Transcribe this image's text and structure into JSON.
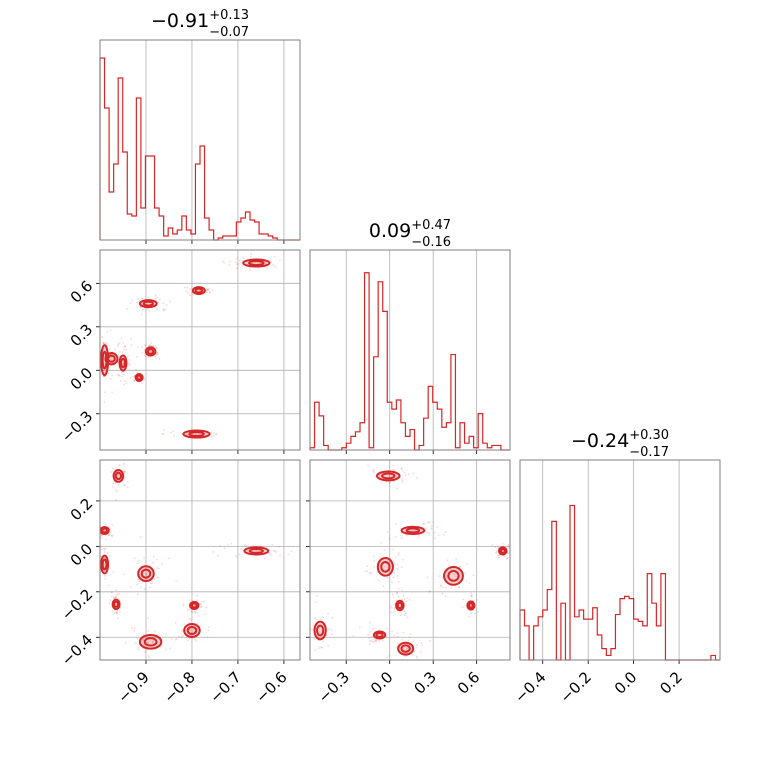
{
  "chart_data": {
    "type": "corner",
    "color": "#d62728",
    "grid": true,
    "titles": [
      {
        "value": "−0.91",
        "plus": "+0.13",
        "minus": "−0.07"
      },
      {
        "value": "0.09",
        "plus": "+0.47",
        "minus": "−0.16"
      },
      {
        "value": "−0.24",
        "plus": "+0.30",
        "minus": "−0.17"
      }
    ],
    "params": [
      {
        "range": [
          -1.0,
          -0.565
        ],
        "ticks": [
          -0.9,
          -0.8,
          -0.7,
          -0.6
        ],
        "tick_labels": [
          "−0.9",
          "−0.8",
          "−0.7",
          "−0.6"
        ]
      },
      {
        "range": [
          -0.55,
          0.83
        ],
        "ticks": [
          -0.3,
          0.0,
          0.3,
          0.6
        ],
        "tick_labels": [
          "−0.3",
          "0.0",
          "0.3",
          "0.6"
        ]
      },
      {
        "range": [
          -0.5,
          0.38
        ],
        "ticks": [
          -0.4,
          -0.2,
          0.0,
          0.2
        ],
        "tick_labels": [
          "−0.4",
          "−0.2",
          "0.0",
          "0.2"
        ]
      }
    ],
    "histograms": [
      {
        "param": 0,
        "bins": 44,
        "max": 1.0,
        "counts": [
          0.91,
          0.66,
          0.24,
          0.38,
          0.81,
          0.44,
          0.13,
          0.12,
          0.71,
          0.16,
          0.42,
          0.42,
          0.16,
          0.12,
          0.02,
          0.06,
          0.03,
          0.05,
          0.12,
          0.05,
          0.03,
          0.38,
          0.47,
          0.11,
          0.05,
          0.0,
          0.01,
          0.02,
          0.02,
          0.02,
          0.09,
          0.11,
          0.14,
          0.1,
          0.09,
          0.03,
          0.03,
          0.02,
          0.01,
          0.0,
          0.0,
          0.0,
          0.0,
          0.0
        ]
      },
      {
        "param": 1,
        "bins": 44,
        "max": 0.88,
        "counts": [
          0.01,
          0.21,
          0.15,
          0.02,
          0.0,
          0.0,
          0.0,
          0.01,
          0.03,
          0.06,
          0.08,
          0.12,
          0.78,
          0.01,
          0.41,
          0.74,
          0.61,
          0.21,
          0.18,
          0.22,
          0.12,
          0.06,
          0.09,
          0.0,
          0.02,
          0.14,
          0.28,
          0.21,
          0.18,
          0.1,
          0.12,
          0.42,
          0.01,
          0.12,
          0.03,
          0.06,
          0.01,
          0.16,
          0.03,
          0.01,
          0.02,
          0.02,
          0.0,
          0.0
        ]
      },
      {
        "param": 2,
        "bins": 44,
        "max": 0.88,
        "counts": [
          0.22,
          0.15,
          0.0,
          0.15,
          0.19,
          0.22,
          0.31,
          0.61,
          0.0,
          0.25,
          0.0,
          0.68,
          0.19,
          0.22,
          0.18,
          0.18,
          0.23,
          0.11,
          0.05,
          0.02,
          0.05,
          0.2,
          0.27,
          0.28,
          0.27,
          0.18,
          0.17,
          0.15,
          0.38,
          0.25,
          0.15,
          0.38,
          0.0,
          0.0,
          0.0,
          0.0,
          0.0,
          0.0,
          0.0,
          0.0,
          0.0,
          0.0,
          0.02,
          0.0
        ]
      }
    ],
    "scatter_panels": [
      {
        "x_param": 0,
        "y_param": 1,
        "clusters": [
          {
            "x": -0.66,
            "y": 0.74,
            "sx": 0.022,
            "sy": 0.015
          },
          {
            "x": -0.895,
            "y": 0.46,
            "sx": 0.014,
            "sy": 0.018
          },
          {
            "x": -0.785,
            "y": 0.55,
            "sx": 0.01,
            "sy": 0.009
          },
          {
            "x": -0.89,
            "y": 0.13,
            "sx": 0.008,
            "sy": 0.022
          },
          {
            "x": -0.975,
            "y": 0.08,
            "sx": 0.01,
            "sy": 0.03
          },
          {
            "x": -0.99,
            "y": 0.07,
            "sx": 0.005,
            "sy": 0.08
          },
          {
            "x": -0.915,
            "y": -0.05,
            "sx": 0.004,
            "sy": 0.01
          },
          {
            "x": -0.95,
            "y": 0.05,
            "sx": 0.005,
            "sy": 0.04
          },
          {
            "x": -0.79,
            "y": -0.44,
            "sx": 0.022,
            "sy": 0.01
          }
        ]
      },
      {
        "x_param": 0,
        "y_param": 2,
        "clusters": [
          {
            "x": -0.96,
            "y": 0.31,
            "sx": 0.008,
            "sy": 0.02
          },
          {
            "x": -0.99,
            "y": 0.07,
            "sx": 0.007,
            "sy": 0.01
          },
          {
            "x": -0.99,
            "y": -0.08,
            "sx": 0.005,
            "sy": 0.03
          },
          {
            "x": -0.965,
            "y": -0.255,
            "sx": 0.004,
            "sy": 0.016
          },
          {
            "x": -0.9,
            "y": -0.12,
            "sx": 0.013,
            "sy": 0.025
          },
          {
            "x": -0.795,
            "y": -0.26,
            "sx": 0.007,
            "sy": 0.012
          },
          {
            "x": -0.8,
            "y": -0.37,
            "sx": 0.013,
            "sy": 0.022
          },
          {
            "x": -0.89,
            "y": -0.42,
            "sx": 0.018,
            "sy": 0.023
          },
          {
            "x": -0.66,
            "y": -0.02,
            "sx": 0.02,
            "sy": 0.012
          }
        ]
      },
      {
        "x_param": 1,
        "y_param": 2,
        "clusters": [
          {
            "x": -0.01,
            "y": 0.31,
            "sx": 0.06,
            "sy": 0.015
          },
          {
            "x": 0.16,
            "y": 0.07,
            "sx": 0.06,
            "sy": 0.012
          },
          {
            "x": -0.03,
            "y": -0.09,
            "sx": 0.04,
            "sy": 0.03
          },
          {
            "x": 0.44,
            "y": -0.13,
            "sx": 0.05,
            "sy": 0.03
          },
          {
            "x": 0.78,
            "y": -0.02,
            "sx": 0.02,
            "sy": 0.012
          },
          {
            "x": 0.07,
            "y": -0.26,
            "sx": 0.02,
            "sy": 0.016
          },
          {
            "x": 0.56,
            "y": -0.26,
            "sx": 0.012,
            "sy": 0.014
          },
          {
            "x": -0.48,
            "y": -0.37,
            "sx": 0.03,
            "sy": 0.03
          },
          {
            "x": -0.07,
            "y": -0.39,
            "sx": 0.03,
            "sy": 0.012
          },
          {
            "x": 0.11,
            "y": -0.45,
            "sx": 0.04,
            "sy": 0.02
          }
        ]
      }
    ]
  }
}
